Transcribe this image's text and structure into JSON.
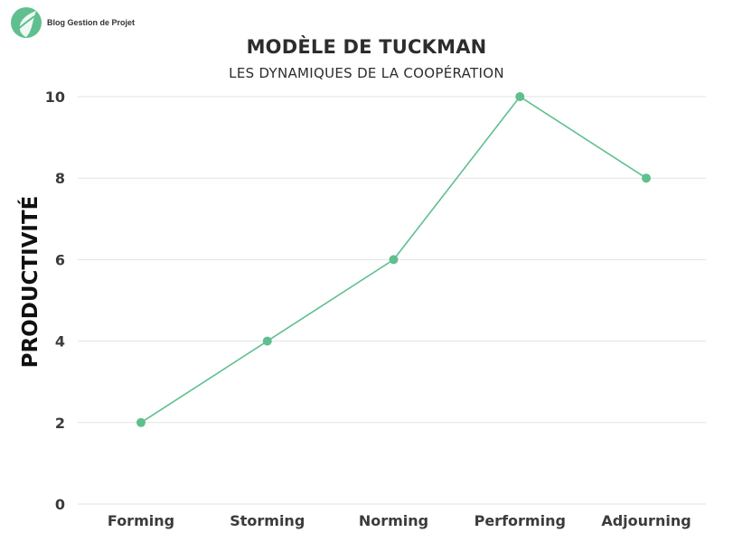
{
  "brand": {
    "name": "Blog Gestion de Projet",
    "logo_icon": "leaf-logo-icon",
    "color": "#5fbf8f"
  },
  "chart_data": {
    "type": "line",
    "title": "MODÈLE DE TUCKMAN",
    "subtitle": "LES DYNAMIQUES DE LA COOPÉRATION",
    "xlabel": "",
    "ylabel": "PRODUCTIVITÉ",
    "categories": [
      "Forming",
      "Storming",
      "Norming",
      "Performing",
      "Adjourning"
    ],
    "series": [
      {
        "values": [
          2,
          4,
          6,
          10,
          8
        ],
        "color": "#5fbf8f"
      }
    ],
    "ylim": [
      0,
      10
    ],
    "yticks": [
      0,
      2,
      4,
      6,
      8,
      10
    ],
    "grid": true,
    "legend": "none"
  }
}
